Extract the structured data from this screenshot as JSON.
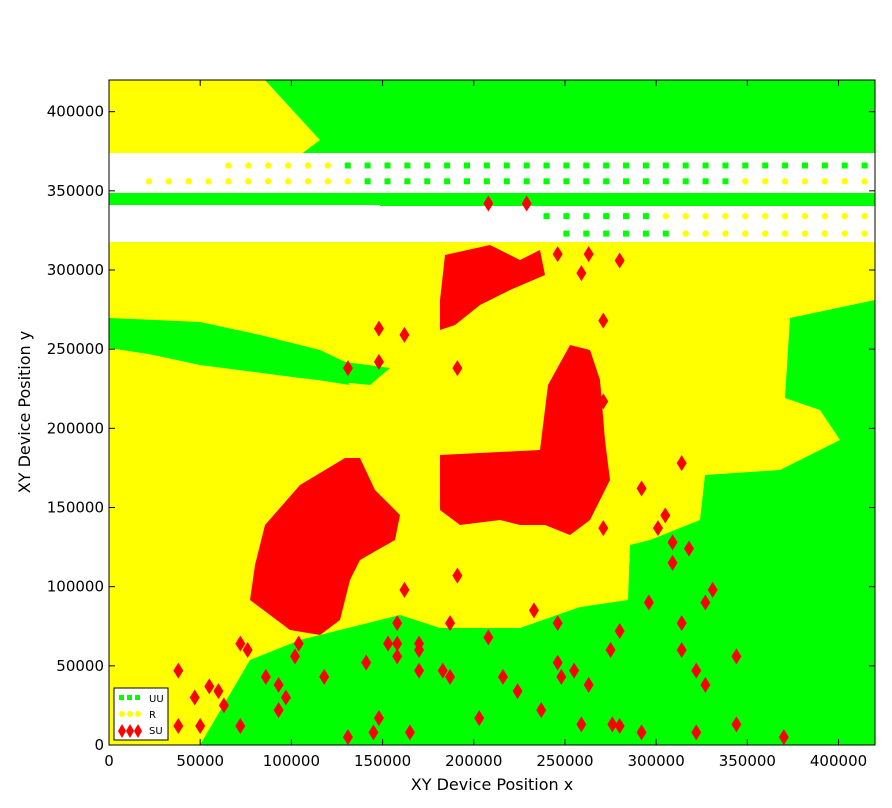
{
  "chart_data": {
    "type": "scatter",
    "title": "",
    "xlabel": "XY Device  Position  x",
    "ylabel": "XY Device  Position  y",
    "xlim": [
      0,
      420000
    ],
    "ylim": [
      0,
      420000
    ],
    "xticks": [
      "0",
      "50000",
      "100000",
      "150000",
      "200000",
      "250000",
      "300000",
      "350000",
      "400000"
    ],
    "yticks": [
      "0",
      "50000",
      "100000",
      "150000",
      "200000",
      "250000",
      "300000",
      "350000",
      "400000"
    ],
    "grid": false,
    "legend_position": "bottom-left",
    "series": [
      {
        "name": "UU",
        "color": "#00ff00",
        "marker": "square"
      },
      {
        "name": "R",
        "color": "#ffff00",
        "marker": "circle"
      },
      {
        "name": "SU",
        "color": "#ff0000",
        "marker": "diamond"
      }
    ],
    "su_points": [
      [
        38000,
        47000
      ],
      [
        38000,
        12000
      ],
      [
        47000,
        30000
      ],
      [
        50000,
        12000
      ],
      [
        55000,
        37000
      ],
      [
        60000,
        34000
      ],
      [
        63000,
        25000
      ],
      [
        72000,
        12000
      ],
      [
        72000,
        64000
      ],
      [
        76000,
        60000
      ],
      [
        86000,
        43000
      ],
      [
        93000,
        38000
      ],
      [
        93000,
        22000
      ],
      [
        97000,
        30000
      ],
      [
        102000,
        56000
      ],
      [
        104000,
        64000
      ],
      [
        118000,
        43000
      ],
      [
        131000,
        5000
      ],
      [
        141000,
        52000
      ],
      [
        145000,
        8000
      ],
      [
        148000,
        17000
      ],
      [
        153000,
        64000
      ],
      [
        158000,
        56000
      ],
      [
        158000,
        64000
      ],
      [
        158000,
        77000
      ],
      [
        162000,
        98000
      ],
      [
        165000,
        8000
      ],
      [
        170000,
        47000
      ],
      [
        170000,
        60000
      ],
      [
        170000,
        64000
      ],
      [
        183000,
        47000
      ],
      [
        187000,
        43000
      ],
      [
        187000,
        77000
      ],
      [
        191000,
        107000
      ],
      [
        203000,
        17000
      ],
      [
        208000,
        68000
      ],
      [
        216000,
        43000
      ],
      [
        224000,
        34000
      ],
      [
        233000,
        85000
      ],
      [
        237000,
        22000
      ],
      [
        246000,
        77000
      ],
      [
        246000,
        52000
      ],
      [
        248000,
        43000
      ],
      [
        255000,
        47000
      ],
      [
        259000,
        13000
      ],
      [
        263000,
        38000
      ],
      [
        271000,
        137000
      ],
      [
        275000,
        60000
      ],
      [
        276000,
        13000
      ],
      [
        280000,
        12000
      ],
      [
        280000,
        72000
      ],
      [
        292000,
        8000
      ],
      [
        292000,
        162000
      ],
      [
        296000,
        90000
      ],
      [
        301000,
        137000
      ],
      [
        305000,
        145000
      ],
      [
        309000,
        128000
      ],
      [
        309000,
        115000
      ],
      [
        314000,
        178000
      ],
      [
        314000,
        77000
      ],
      [
        314000,
        60000
      ],
      [
        318000,
        124000
      ],
      [
        322000,
        47000
      ],
      [
        322000,
        8000
      ],
      [
        327000,
        90000
      ],
      [
        327000,
        38000
      ],
      [
        331000,
        98000
      ],
      [
        344000,
        56000
      ],
      [
        344000,
        13000
      ],
      [
        370000,
        5000
      ],
      [
        131000,
        238000
      ],
      [
        148000,
        242000
      ],
      [
        148000,
        263000
      ],
      [
        162000,
        259000
      ],
      [
        191000,
        238000
      ],
      [
        208000,
        342000
      ],
      [
        229000,
        342000
      ],
      [
        246000,
        310000
      ],
      [
        263000,
        310000
      ],
      [
        259000,
        298000
      ],
      [
        280000,
        306000
      ],
      [
        271000,
        268000
      ],
      [
        271000,
        217000
      ]
    ]
  }
}
